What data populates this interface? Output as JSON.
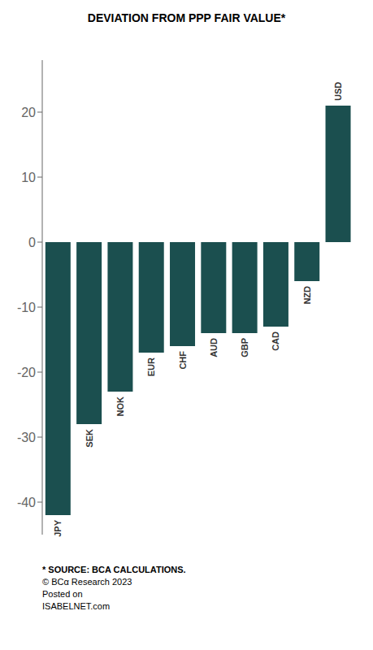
{
  "chart_data": {
    "type": "bar",
    "title": "DEVIATION FROM PPP FAIR VALUE*",
    "categories": [
      "JPY",
      "SEK",
      "NOK",
      "EUR",
      "CHF",
      "AUD",
      "GBP",
      "CAD",
      "NZD",
      "USD"
    ],
    "values": [
      -42,
      -28,
      -23,
      -17,
      -16,
      -14,
      -14,
      -13,
      -6,
      21
    ],
    "color": "#1b4f4f",
    "ylim": [
      -45,
      28
    ],
    "yticks": [
      -40,
      -30,
      -20,
      -10,
      0,
      10,
      20
    ],
    "grid": false,
    "tick_labels": "y",
    "annotations": [
      "* SOURCE: BCA CALCULATIONS.",
      "© BCα Research 2023",
      "Posted on",
      "ISABELNET.com"
    ]
  }
}
